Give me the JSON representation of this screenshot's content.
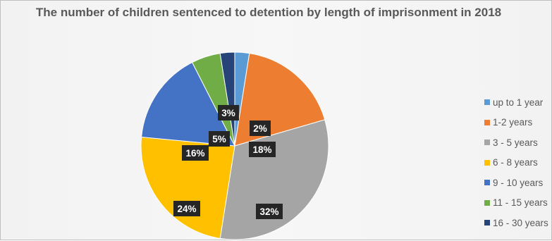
{
  "chart_data": {
    "type": "pie",
    "title": "The number of children sentenced to detention by length of imprisonment in 2018",
    "legend_position": "right",
    "start_angle_deg": 0,
    "direction": "clockwise",
    "categories": [
      "up to 1 year",
      "1-2 years",
      "3 - 5 years",
      "6 - 8 years",
      "9 - 10 years",
      "11 - 15 years",
      "16 - 30 years"
    ],
    "values": [
      2.5,
      18,
      32,
      24,
      16,
      5,
      2.5
    ],
    "labels": [
      "2%",
      "18%",
      "32%",
      "24%",
      "16%",
      "5%",
      "3%"
    ],
    "colors": [
      "#5b9bd5",
      "#ed7d31",
      "#a5a5a5",
      "#ffc000",
      "#4472c4",
      "#70ad47",
      "#264478"
    ]
  }
}
